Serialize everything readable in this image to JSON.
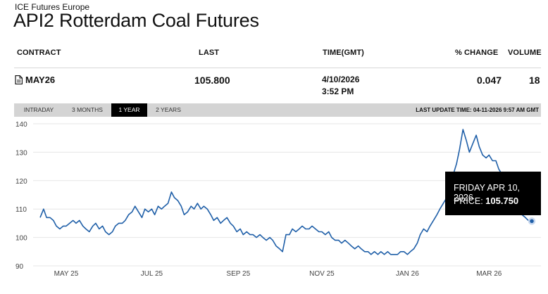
{
  "exchange": "ICE Futures Europe",
  "title": "API2 Rotterdam Coal Futures",
  "table": {
    "headers": {
      "contract": "CONTRACT",
      "last": "LAST",
      "time": "TIME(GMT)",
      "change": "% CHANGE",
      "volume": "VOLUME"
    },
    "row": {
      "contract": "MAY26",
      "last": "105.800",
      "date": "4/10/2026",
      "time": "3:52 PM",
      "change": "0.047",
      "volume": "18"
    }
  },
  "tabs": [
    "INTRADAY",
    "3 MONTHS",
    "1 YEAR",
    "2 YEARS"
  ],
  "active_tab": "1 YEAR",
  "last_update": "LAST UPDATE TIME: 04-11-2026 9:57 AM GMT",
  "tooltip": {
    "date": "FRIDAY APR 10, 2026",
    "price_label": "PRICE:",
    "price_value": "105.750"
  },
  "colors": {
    "line": "#1f5fa8",
    "grid": "#e6e6e6",
    "tab_bar": "#d4d4d4",
    "tooltip_bg": "#000000"
  },
  "chart_data": {
    "type": "line",
    "ylim": [
      90,
      140
    ],
    "yticks": [
      90,
      100,
      110,
      120,
      130,
      140
    ],
    "xtick_labels": [
      "MAY 25",
      "JUL 25",
      "SEP 25",
      "NOV 25",
      "JAN 26",
      "MAR 26"
    ],
    "x_range": [
      0,
      100
    ],
    "xtick_positions": [
      5.3,
      22.7,
      40.3,
      57.3,
      74.7,
      91.3
    ],
    "series": [
      {
        "x": [
          0.0,
          0.7,
          1.3,
          2.0,
          2.7,
          3.3,
          4.0,
          4.7,
          5.3,
          6.0,
          6.7,
          7.3,
          8.0,
          8.7,
          9.3,
          10.0,
          10.7,
          11.3,
          12.0,
          12.7,
          13.3,
          14.0,
          14.7,
          15.3,
          16.0,
          16.7,
          17.3,
          18.0,
          18.7,
          19.3,
          20.0,
          20.7,
          21.3,
          22.0,
          22.7,
          23.3,
          24.0,
          24.7,
          25.3,
          26.0,
          26.7,
          27.3,
          28.0,
          28.7,
          29.3,
          30.0,
          30.7,
          31.3,
          32.0,
          32.7,
          33.3,
          34.0,
          34.7,
          35.3,
          36.0,
          36.7,
          37.3,
          38.0,
          38.7,
          39.3,
          40.0,
          40.7,
          41.3,
          42.0,
          42.7,
          43.3,
          44.0,
          44.7,
          45.3,
          46.0,
          46.7,
          47.3,
          48.0,
          48.7,
          49.3,
          50.0,
          50.7,
          51.3,
          52.0,
          52.7,
          53.3,
          54.0,
          54.7,
          55.3,
          56.0,
          56.7,
          57.3,
          58.0,
          58.7,
          59.3,
          60.0,
          60.7,
          61.3,
          62.0,
          62.7,
          63.3,
          64.0,
          64.7,
          65.3,
          66.0,
          66.7,
          67.3,
          68.0,
          68.7,
          69.3,
          70.0,
          70.7,
          71.3,
          72.0,
          72.7,
          73.3,
          74.0,
          74.7,
          75.3,
          76.0,
          76.7,
          77.3,
          78.0,
          78.7,
          79.3,
          80.0,
          80.7,
          81.3,
          82.0,
          82.7,
          83.3,
          84.0,
          84.7,
          85.3,
          86.0,
          86.7,
          87.3,
          88.0,
          88.7,
          89.3,
          90.0,
          90.7,
          91.3,
          92.0,
          92.7,
          93.3,
          94.0,
          94.7,
          95.3,
          96.0,
          96.7,
          97.3,
          98.0,
          98.7,
          99.3,
          100.0
        ],
        "values": [
          107,
          110,
          107,
          107,
          106,
          104,
          103,
          104,
          104,
          105,
          106,
          105,
          106,
          104,
          103,
          102,
          104,
          105,
          103,
          104,
          102,
          101,
          102,
          104,
          105,
          105,
          106,
          108,
          109,
          111,
          109,
          107,
          110,
          109,
          110,
          108,
          111,
          110,
          111,
          112,
          116,
          114,
          113,
          111,
          108,
          109,
          111,
          110,
          112,
          110,
          111,
          110,
          108,
          106,
          107,
          105,
          106,
          107,
          105,
          104,
          102,
          103,
          101,
          102,
          101,
          101,
          100,
          101,
          100,
          99,
          100,
          99,
          97,
          96,
          95,
          101,
          101,
          103,
          102,
          103,
          104,
          103,
          103,
          104,
          103,
          102,
          102,
          101,
          102,
          100,
          99,
          99,
          98,
          99,
          98,
          97,
          96,
          97,
          96,
          95,
          95,
          94,
          95,
          94,
          95,
          94,
          95,
          94,
          94,
          94,
          95,
          95,
          94,
          95,
          96,
          98,
          101,
          103,
          102,
          104,
          106,
          108,
          110,
          112,
          114,
          118,
          122,
          126,
          131,
          138,
          134,
          130,
          133,
          136,
          132,
          129,
          128,
          129,
          127,
          127,
          124,
          122,
          121,
          118,
          115,
          112,
          110,
          108,
          107,
          106,
          105.75
        ]
      }
    ]
  }
}
